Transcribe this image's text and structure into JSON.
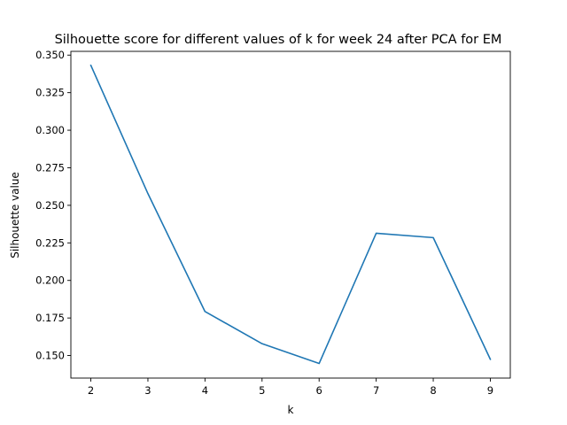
{
  "chart_data": {
    "type": "line",
    "title": "Silhouette score for different values of k for week 24 after PCA for EM",
    "xlabel": "k",
    "ylabel": "Silhouette value",
    "x": [
      2,
      3,
      4,
      5,
      6,
      7,
      8,
      9
    ],
    "series": [
      {
        "values": [
          0.3432,
          0.2578,
          0.1793,
          0.1579,
          0.1447,
          0.2314,
          0.2285,
          0.1475
        ],
        "color": "#1f77b4"
      }
    ],
    "xlim": [
      1.65,
      9.35
    ],
    "ylim": [
      0.135,
      0.3525
    ],
    "xticks": [
      2,
      3,
      4,
      5,
      6,
      7,
      8,
      9
    ],
    "yticks": [
      "0.150",
      "0.175",
      "0.200",
      "0.225",
      "0.250",
      "0.275",
      "0.300",
      "0.325",
      "0.350"
    ],
    "grid": false
  }
}
